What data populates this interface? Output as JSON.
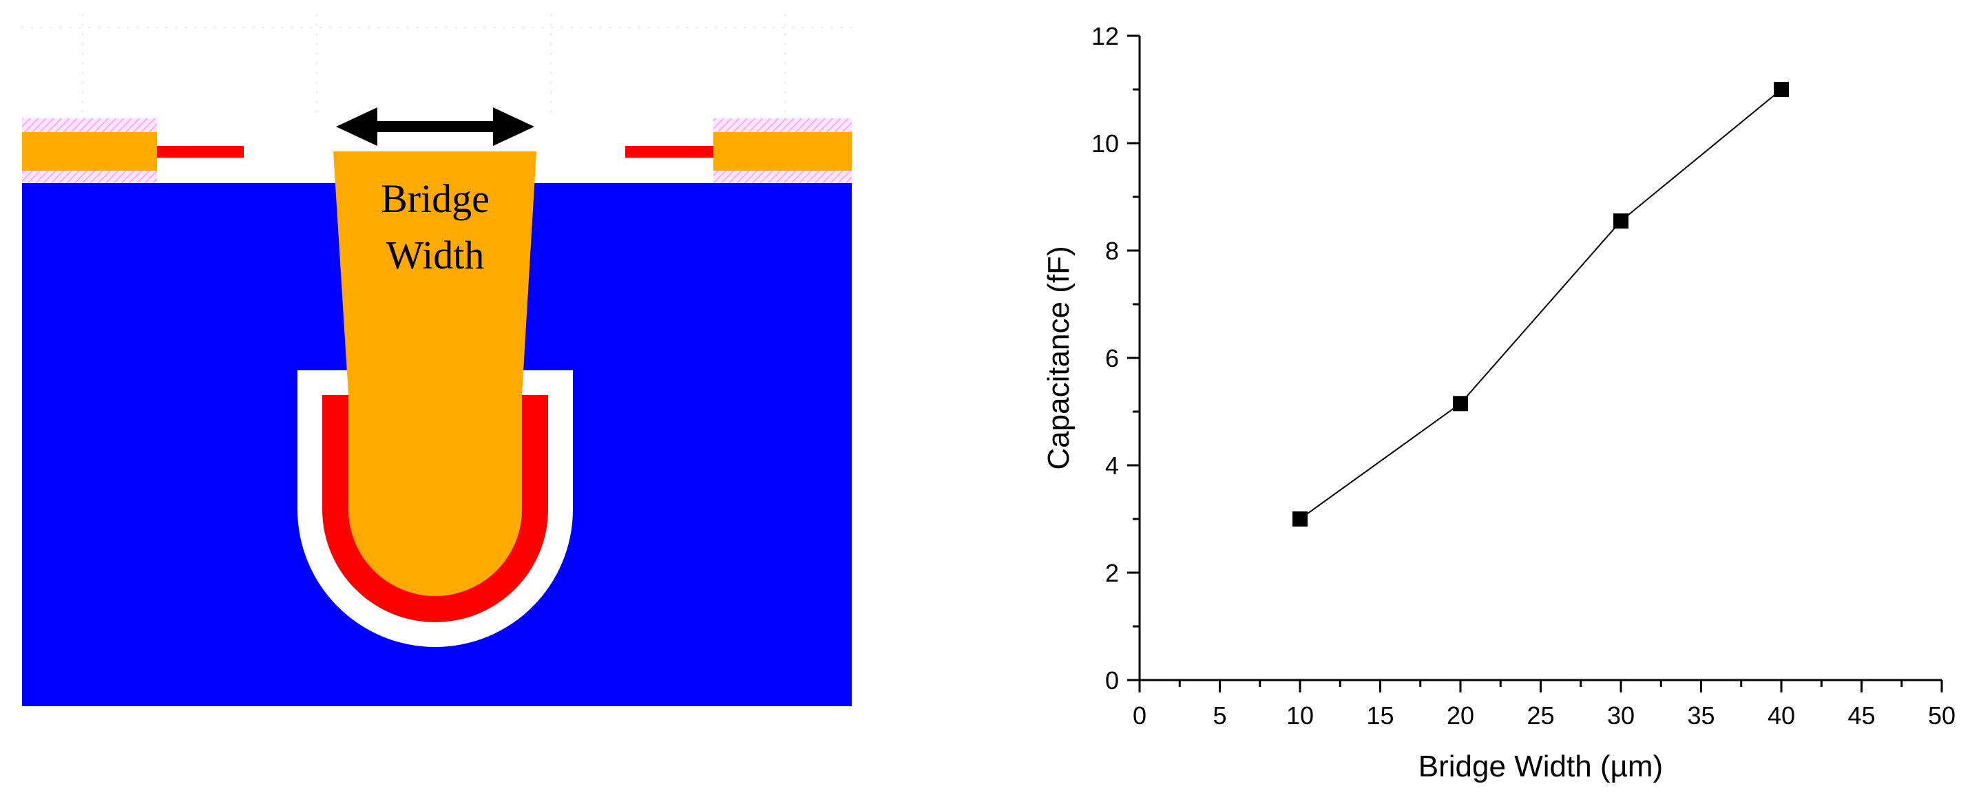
{
  "diagram": {
    "label_line1": "Bridge",
    "label_line2": "Width",
    "colors": {
      "substrate": "#0000ff",
      "metal": "#ffaa00",
      "gap_red": "#ff0000",
      "clearance": "#ffffff",
      "hatch": "#ff99ff",
      "arrow": "#000000"
    }
  },
  "chart_data": {
    "type": "line",
    "xlabel": "Bridge Width (µm)",
    "ylabel": "Capacitance (fF)",
    "xlim": [
      0,
      50
    ],
    "ylim": [
      0,
      12
    ],
    "xticks": [
      "0",
      "5",
      "10",
      "15",
      "20",
      "25",
      "30",
      "35",
      "40",
      "45",
      "50"
    ],
    "yticks": [
      "0",
      "2",
      "4",
      "6",
      "8",
      "10",
      "12"
    ],
    "grid": false,
    "marker": "square",
    "series": [
      {
        "x": [
          10,
          20,
          30,
          40
        ],
        "values": [
          3.0,
          5.15,
          8.55,
          11.0
        ]
      }
    ]
  }
}
